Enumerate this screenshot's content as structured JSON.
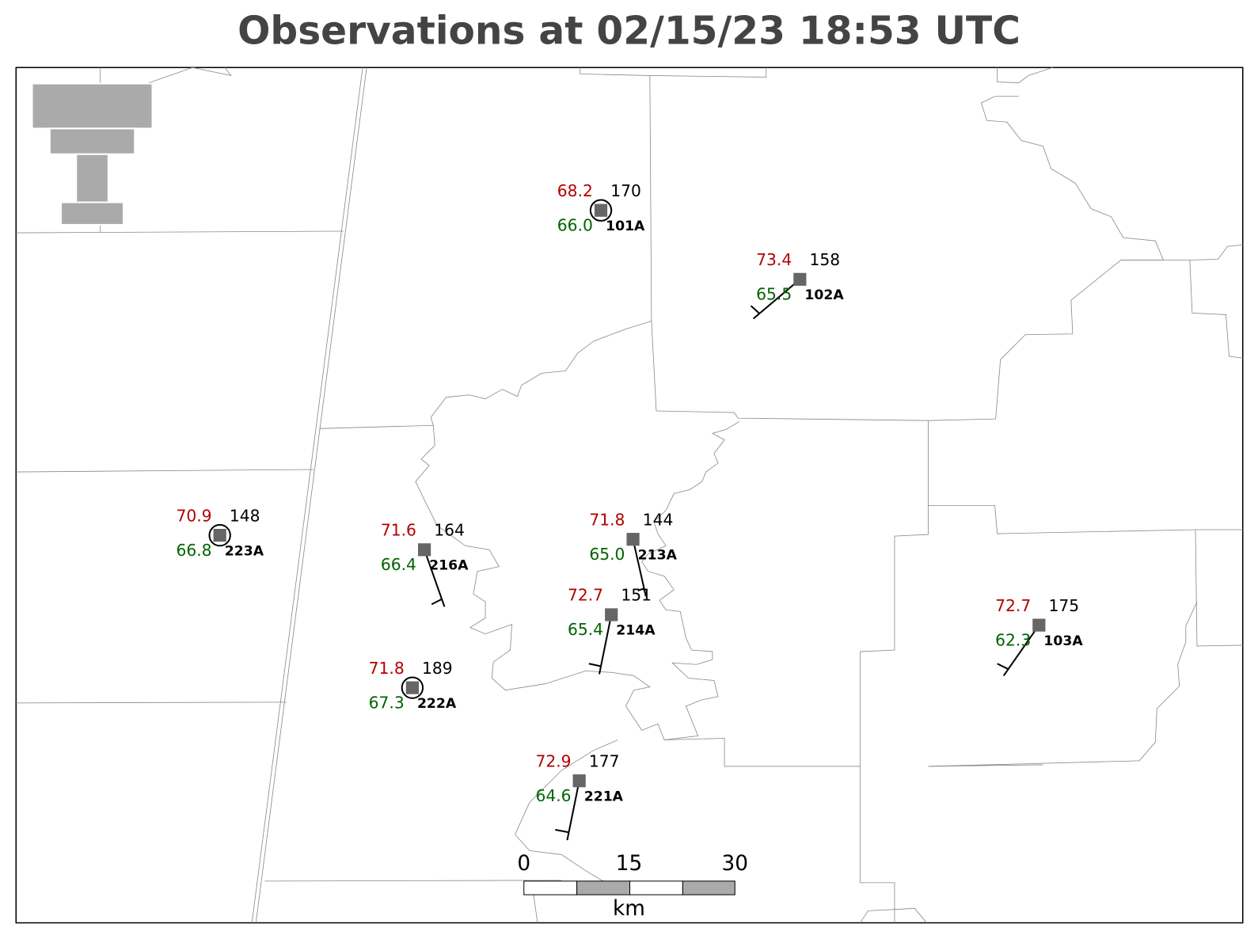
{
  "title": "Observations at 02/15/23 18:53 UTC",
  "stations": [
    {
      "id": "101A",
      "temp": "68.2",
      "dewpoint": "66.0",
      "value": "170"
    },
    {
      "id": "102A",
      "temp": "73.4",
      "dewpoint": "65.5",
      "value": "158"
    },
    {
      "id": "223A",
      "temp": "70.9",
      "dewpoint": "66.8",
      "value": "148"
    },
    {
      "id": "216A",
      "temp": "71.6",
      "dewpoint": "66.4",
      "value": "164"
    },
    {
      "id": "213A",
      "temp": "71.8",
      "dewpoint": "65.0",
      "value": "144"
    },
    {
      "id": "214A",
      "temp": "72.7",
      "dewpoint": "65.4",
      "value": "151"
    },
    {
      "id": "222A",
      "temp": "71.8",
      "dewpoint": "67.3",
      "value": "189"
    },
    {
      "id": "221A",
      "temp": "72.9",
      "dewpoint": "64.6",
      "value": "177"
    },
    {
      "id": "103A",
      "temp": "72.7",
      "dewpoint": "62.3",
      "value": "175"
    }
  ],
  "scale": {
    "labels": [
      "0",
      "15",
      "30"
    ],
    "unit": "km"
  }
}
